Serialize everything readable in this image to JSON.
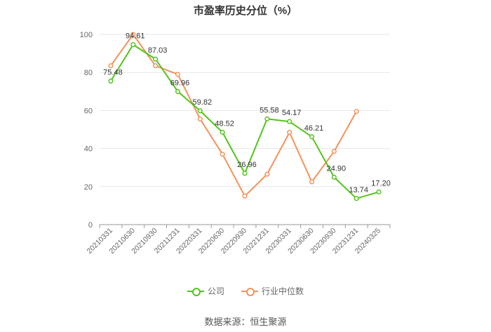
{
  "chart_data": {
    "type": "line",
    "title": "市盈率历史分位（%）",
    "categories": [
      "20210331",
      "20210630",
      "20210930",
      "20211231",
      "20220331",
      "20220630",
      "20220930",
      "20221231",
      "20230331",
      "20230630",
      "20230930",
      "20231231",
      "20240325"
    ],
    "ylim": [
      0,
      100
    ],
    "yticks": [
      0,
      20,
      40,
      60,
      80,
      100
    ],
    "grid": true,
    "legend_position": "bottom",
    "series": [
      {
        "name": "公司",
        "color": "#52c41a",
        "values": [
          75.48,
          94.61,
          87.03,
          69.96,
          59.82,
          48.52,
          26.96,
          55.58,
          54.17,
          46.21,
          24.9,
          13.74,
          17.2
        ],
        "labels": [
          "75.48",
          "94.61",
          "87.03",
          "69.96",
          "59.82",
          "48.52",
          "26.96",
          "55.58",
          "54.17",
          "46.21",
          "24.90",
          "13.74",
          "17.20"
        ]
      },
      {
        "name": "行业中位数",
        "color": "#f4925a",
        "values": [
          83.5,
          100,
          83.5,
          79,
          55.5,
          37,
          15,
          26.5,
          48.5,
          22.5,
          38.5,
          59.5,
          null
        ]
      }
    ],
    "source": "数据来源：恒生聚源"
  }
}
